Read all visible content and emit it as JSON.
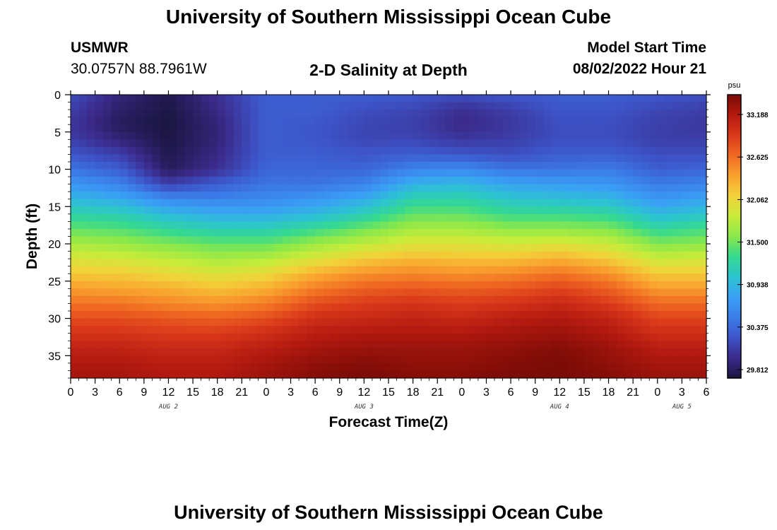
{
  "header": {
    "title": "University of Southern Mississippi Ocean Cube",
    "station_name": "USMWR",
    "station_coords": "30.0757N  88.7961W",
    "plot_title": "2-D Salinity at Depth",
    "model_start_label": "Model Start Time",
    "model_start_value": "08/02/2022 Hour 21"
  },
  "footer": {
    "title": "University of Southern Mississippi Ocean Cube"
  },
  "chart_data": {
    "type": "heatmap",
    "title": "2-D Salinity at Depth",
    "xlabel": "Forecast Time(Z)",
    "ylabel": "Depth (ft)",
    "x_ticks": [
      "0",
      "3",
      "6",
      "9",
      "12",
      "15",
      "18",
      "21",
      "0",
      "3",
      "6",
      "9",
      "12",
      "15",
      "18",
      "21",
      "0",
      "3",
      "6",
      "9",
      "12",
      "15",
      "18",
      "21",
      "0",
      "3",
      "6"
    ],
    "x_range_hours": [
      0,
      78
    ],
    "date_labels": [
      {
        "hour": 12,
        "label": "AUG 2"
      },
      {
        "hour": 36,
        "label": "AUG 3"
      },
      {
        "hour": 60,
        "label": "AUG 4"
      },
      {
        "hour": 75,
        "label": "AUG 5"
      }
    ],
    "y_ticks": [
      "0",
      "5",
      "10",
      "15",
      "20",
      "25",
      "30",
      "35"
    ],
    "ylim": [
      0,
      38
    ],
    "y_inverted": true,
    "colorbar": {
      "unit": "psu",
      "ticks": [
        "33.188",
        "32.625",
        "32.062",
        "31.500",
        "30.938",
        "30.375",
        "29.812"
      ],
      "min": 29.7,
      "max": 33.45,
      "colors": [
        "#1a1540",
        "#3b2a8a",
        "#3d54c8",
        "#3b7de8",
        "#3aa0f5",
        "#2cc4d0",
        "#35d98f",
        "#8ae84a",
        "#c8ec3a",
        "#f2d23a",
        "#f9a12e",
        "#f06a22",
        "#d9381a",
        "#b41a10",
        "#7a0b06"
      ]
    },
    "grid": false,
    "legend": "colorbar-right",
    "time_hours": [
      0,
      6,
      12,
      18,
      24,
      30,
      36,
      42,
      48,
      54,
      60,
      66,
      72,
      78
    ],
    "depth_ft": [
      0,
      2,
      4,
      6,
      8,
      10,
      12,
      14,
      16,
      18,
      20,
      22,
      24,
      26,
      28,
      30,
      32,
      34,
      36,
      38
    ],
    "salinity": [
      [
        30.2,
        29.9,
        29.75,
        30.0,
        30.3,
        30.3,
        30.3,
        30.25,
        30.2,
        30.25,
        30.3,
        30.3,
        30.25,
        30.2
      ],
      [
        30.1,
        29.85,
        29.72,
        29.95,
        30.3,
        30.3,
        30.2,
        30.15,
        30.0,
        30.1,
        30.25,
        30.25,
        30.15,
        30.1
      ],
      [
        30.05,
        29.8,
        29.7,
        29.9,
        30.3,
        30.25,
        30.15,
        30.1,
        29.95,
        30.05,
        30.2,
        30.2,
        30.1,
        30.05
      ],
      [
        30.1,
        29.9,
        29.72,
        29.9,
        30.3,
        30.25,
        30.15,
        30.15,
        30.05,
        30.1,
        30.2,
        30.2,
        30.1,
        30.1
      ],
      [
        30.25,
        30.1,
        29.75,
        29.95,
        30.3,
        30.3,
        30.25,
        30.3,
        30.25,
        30.2,
        30.3,
        30.3,
        30.2,
        30.2
      ],
      [
        30.45,
        30.3,
        29.8,
        30.0,
        30.35,
        30.35,
        30.35,
        30.55,
        30.6,
        30.45,
        30.45,
        30.5,
        30.3,
        30.35
      ],
      [
        30.7,
        30.55,
        30.1,
        30.3,
        30.45,
        30.45,
        30.55,
        30.9,
        30.95,
        30.8,
        30.75,
        30.7,
        30.5,
        30.55
      ],
      [
        30.95,
        30.85,
        30.6,
        30.55,
        30.6,
        30.7,
        30.85,
        31.2,
        31.2,
        31.05,
        31.0,
        30.95,
        30.7,
        30.8
      ],
      [
        31.2,
        31.15,
        30.95,
        30.85,
        30.85,
        30.95,
        31.15,
        31.45,
        31.45,
        31.3,
        31.3,
        31.25,
        30.95,
        31.05
      ],
      [
        31.45,
        31.4,
        31.25,
        31.15,
        31.15,
        31.3,
        31.5,
        31.7,
        31.7,
        31.6,
        31.6,
        31.55,
        31.25,
        31.35
      ],
      [
        31.7,
        31.65,
        31.55,
        31.45,
        31.45,
        31.65,
        31.8,
        31.95,
        31.95,
        31.9,
        31.95,
        31.85,
        31.55,
        31.6
      ],
      [
        31.95,
        31.9,
        31.8,
        31.7,
        31.75,
        31.95,
        32.15,
        32.25,
        32.2,
        32.2,
        32.3,
        32.15,
        31.85,
        31.9
      ],
      [
        32.15,
        32.15,
        32.05,
        31.95,
        32.05,
        32.3,
        32.45,
        32.5,
        32.45,
        32.5,
        32.6,
        32.45,
        32.15,
        32.15
      ],
      [
        32.4,
        32.35,
        32.3,
        32.2,
        32.3,
        32.55,
        32.7,
        32.75,
        32.7,
        32.75,
        32.85,
        32.7,
        32.4,
        32.4
      ],
      [
        32.6,
        32.6,
        32.5,
        32.45,
        32.55,
        32.8,
        32.9,
        32.95,
        32.9,
        32.95,
        33.05,
        32.9,
        32.65,
        32.65
      ],
      [
        32.8,
        32.8,
        32.75,
        32.7,
        32.8,
        33.0,
        33.05,
        33.1,
        33.05,
        33.15,
        33.2,
        33.1,
        32.85,
        32.85
      ],
      [
        32.95,
        32.95,
        32.9,
        32.9,
        33.0,
        33.15,
        33.2,
        33.2,
        33.2,
        33.25,
        33.3,
        33.2,
        33.0,
        33.0
      ],
      [
        33.1,
        33.1,
        33.05,
        33.05,
        33.15,
        33.25,
        33.3,
        33.3,
        33.3,
        33.35,
        33.4,
        33.3,
        33.15,
        33.15
      ],
      [
        33.2,
        33.2,
        33.15,
        33.15,
        33.25,
        33.35,
        33.4,
        33.35,
        33.35,
        33.4,
        33.45,
        33.35,
        33.25,
        33.25
      ],
      [
        33.25,
        33.25,
        33.2,
        33.2,
        33.3,
        33.4,
        33.45,
        33.4,
        33.4,
        33.45,
        33.45,
        33.4,
        33.3,
        33.3
      ]
    ]
  }
}
